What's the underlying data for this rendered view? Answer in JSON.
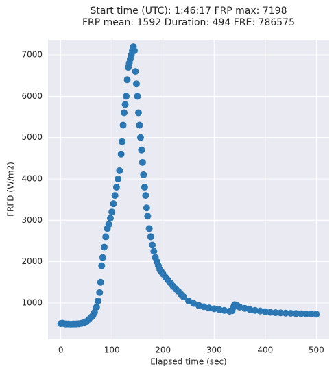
{
  "chart_data": {
    "type": "scatter",
    "title": [
      "Start time (UTC): 1:46:17 FRP max: 7198",
      "FRP mean: 1592 Duration: 494 FRE: 786575"
    ],
    "x_label": "Elapsed time (sec)",
    "y_label": "FRFD (W/m2)",
    "xlim": [
      -25,
      525
    ],
    "ylim": [
      120,
      7365
    ],
    "xticks": [
      0,
      100,
      200,
      300,
      400,
      500
    ],
    "yticks": [
      1000,
      2000,
      3000,
      4000,
      5000,
      6000,
      7000
    ],
    "grid": true,
    "background": "#eaeaf2",
    "series": [
      {
        "color": "#2a77b4",
        "x": [
          0,
          3,
          6,
          10,
          15,
          20,
          25,
          30,
          35,
          40,
          45,
          50,
          55,
          60,
          63,
          66,
          70,
          73,
          76,
          78,
          80,
          82,
          85,
          88,
          91,
          94,
          97,
          100,
          103,
          106,
          109,
          112,
          115,
          118,
          120,
          122,
          124,
          126,
          128,
          130,
          132,
          134,
          136,
          138,
          140,
          142,
          144,
          146,
          148,
          150,
          152,
          154,
          156,
          158,
          160,
          162,
          164,
          166,
          168,
          170,
          173,
          176,
          179,
          182,
          185,
          188,
          191,
          194,
          197,
          200,
          205,
          210,
          215,
          220,
          225,
          230,
          235,
          240,
          250,
          260,
          270,
          280,
          290,
          300,
          310,
          320,
          330,
          335,
          338,
          340,
          343,
          347,
          350,
          360,
          370,
          380,
          390,
          400,
          410,
          420,
          430,
          440,
          450,
          460,
          470,
          480,
          490,
          500
        ],
        "values": [
          500,
          510,
          500,
          490,
          490,
          485,
          490,
          490,
          495,
          505,
          520,
          550,
          600,
          660,
          700,
          770,
          900,
          1050,
          1250,
          1500,
          1900,
          2100,
          2350,
          2600,
          2800,
          2900,
          3050,
          3200,
          3400,
          3600,
          3800,
          4000,
          4200,
          4600,
          4900,
          5300,
          5600,
          5800,
          6000,
          6400,
          6700,
          6800,
          6900,
          7000,
          7100,
          7198,
          7100,
          6600,
          6300,
          6000,
          5600,
          5300,
          5000,
          4700,
          4400,
          4100,
          3800,
          3600,
          3300,
          3100,
          2800,
          2600,
          2400,
          2250,
          2100,
          2000,
          1900,
          1800,
          1750,
          1700,
          1620,
          1550,
          1480,
          1400,
          1340,
          1280,
          1210,
          1150,
          1050,
          990,
          940,
          910,
          880,
          860,
          840,
          820,
          800,
          810,
          900,
          960,
          950,
          920,
          900,
          870,
          840,
          820,
          805,
          790,
          775,
          765,
          760,
          755,
          750,
          745,
          740,
          735,
          735,
          730
        ]
      }
    ]
  }
}
